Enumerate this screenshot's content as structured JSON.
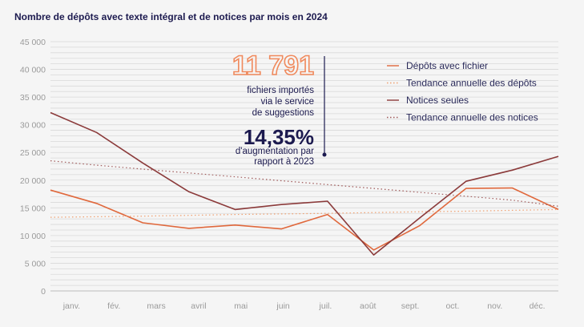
{
  "chart_data": {
    "type": "line",
    "title": "Nombre de dépôts avec texte intégral et de notices par mois en 2024",
    "xlabel": "",
    "ylabel": "",
    "categories": [
      "janv.",
      "fév.",
      "mars",
      "avril",
      "mai",
      "juin",
      "juil.",
      "août",
      "sept.",
      "oct.",
      "nov.",
      "déc."
    ],
    "ylim": [
      0,
      45000
    ],
    "yticks": [
      0,
      5000,
      10000,
      15000,
      20000,
      25000,
      30000,
      35000,
      40000,
      45000
    ],
    "ytick_labels": [
      "0",
      "5 000",
      "10 000",
      "15 000",
      "20 000",
      "25 000",
      "30 000",
      "35 000",
      "40 000",
      "45 000"
    ],
    "grid_step": 1000,
    "legend_position": "top-right",
    "series": [
      {
        "name": "Dépôts avec fichier",
        "style": "solid",
        "color": "#e0683c",
        "values": [
          18200,
          15800,
          12300,
          11300,
          11900,
          11200,
          13800,
          7400,
          11800,
          18500,
          18600,
          14700
        ]
      },
      {
        "name": "Tendance annuelle des dépôts",
        "style": "dotted",
        "color": "#f0a070",
        "values": [
          13300,
          13400,
          13500,
          13650,
          13800,
          13900,
          14000,
          14150,
          14300,
          14400,
          14550,
          14700
        ]
      },
      {
        "name": "Notices seules",
        "style": "solid",
        "color": "#8b3a3a",
        "values": [
          32200,
          28600,
          23100,
          17900,
          14700,
          15600,
          16200,
          6500,
          13200,
          19800,
          21800,
          24300
        ]
      },
      {
        "name": "Tendance annuelle des notices",
        "style": "dotted",
        "color": "#a05a5a",
        "values": [
          23500,
          22700,
          22000,
          21300,
          20600,
          19900,
          19200,
          18500,
          17800,
          17100,
          16400,
          15300
        ]
      }
    ]
  },
  "stats": {
    "files_count": "11 791",
    "files_line1": "fichiers importés",
    "files_line2": "via le service",
    "files_line3": "de suggestions",
    "increase_pct": "14,35%",
    "increase_line1": "d'augmentation par",
    "increase_line2": "rapport à 2023"
  },
  "colors": {
    "title": "#1c1a4f",
    "grid": "#d9d9d9",
    "axis_text": "#9a9a9a"
  }
}
